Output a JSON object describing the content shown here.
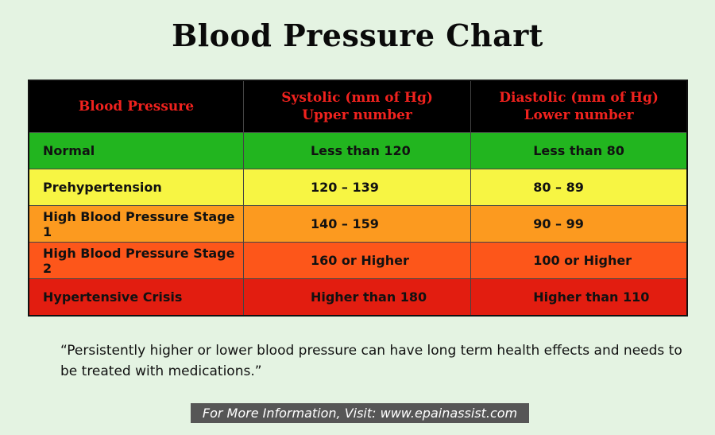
{
  "chart_data": {
    "type": "table",
    "title": "Blood Pressure Chart",
    "columns": [
      {
        "line1": "Blood Pressure",
        "line2": ""
      },
      {
        "line1": "Systolic (mm of Hg)",
        "line2": "Upper number"
      },
      {
        "line1": "Diastolic (mm of Hg)",
        "line2": "Lower number"
      }
    ],
    "rows": [
      {
        "category": "Normal",
        "systolic": "Less than 120",
        "diastolic": "Less than 80",
        "color": "#22b51f"
      },
      {
        "category": "Prehypertension",
        "systolic": "120 – 139",
        "diastolic": "80 – 89",
        "color": "#f7f543"
      },
      {
        "category": "High Blood Pressure Stage 1",
        "systolic": "140 – 159",
        "diastolic": "90 – 99",
        "color": "#fc9a1f"
      },
      {
        "category": "High Blood Pressure Stage 2",
        "systolic": "160 or Higher",
        "diastolic": "100 or Higher",
        "color": "#fd561a"
      },
      {
        "category": "Hypertensive Crisis",
        "systolic": "Higher than 180",
        "diastolic": "Higher than 110",
        "color": "#e21d10"
      }
    ]
  },
  "note": "“Persistently higher or lower blood pressure can have long term health effects and needs to be treated with medications.”",
  "footer": "For More Information, Visit: www.epainassist.com",
  "colors": {
    "background": "#e4f3e2",
    "header_bg": "#000000",
    "header_text": "#f0221e",
    "footer_bg": "#565656"
  }
}
